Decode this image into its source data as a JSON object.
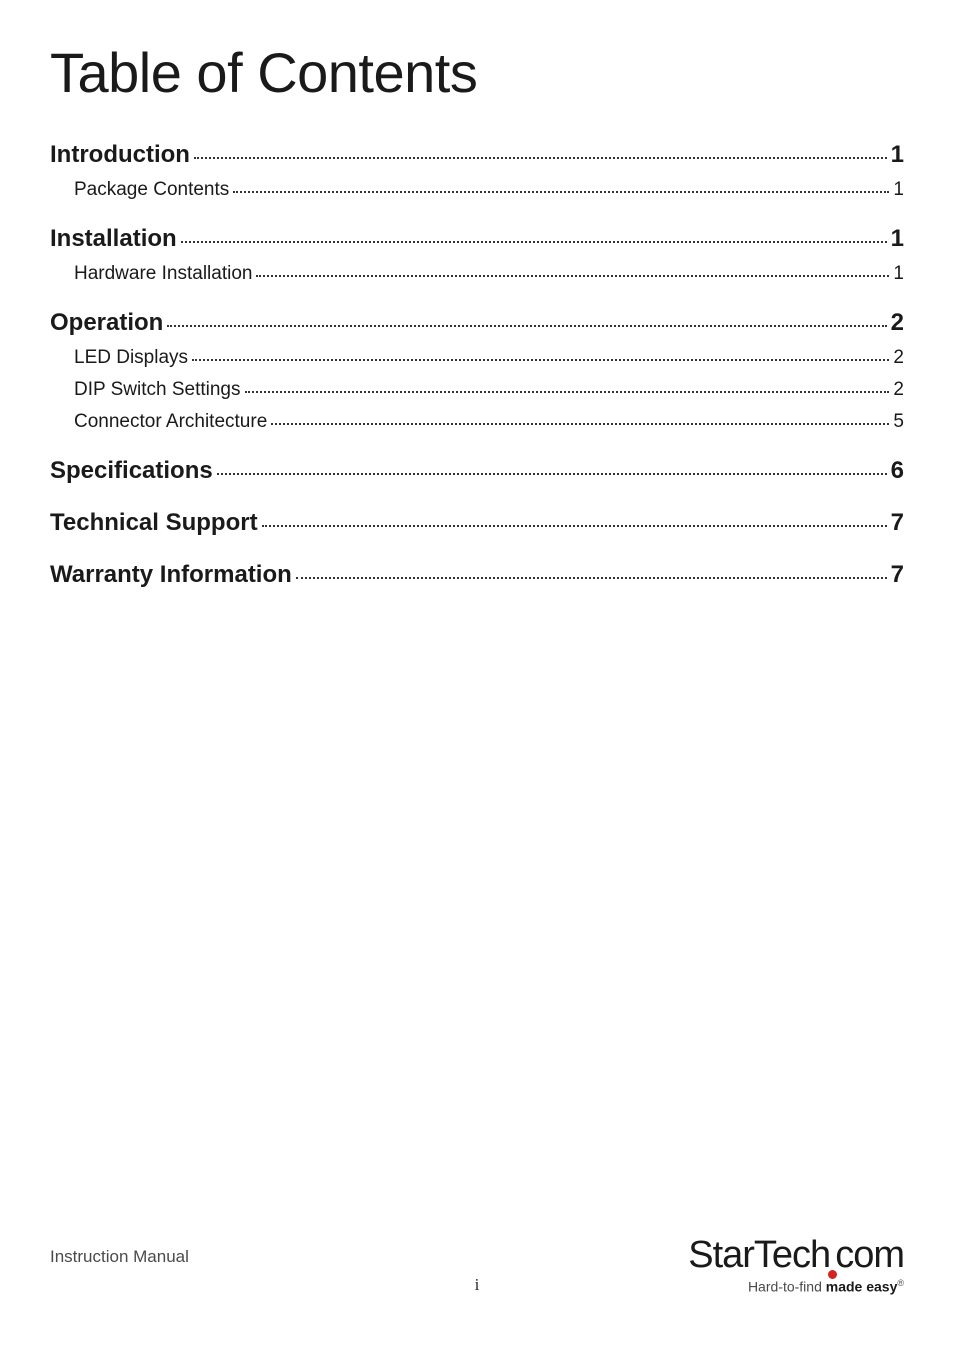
{
  "document": {
    "title": "Table of Contents",
    "footer_label": "Instruction Manual",
    "page_number": "i",
    "logo_text_1": "StarTech",
    "logo_text_2": "com",
    "tagline_prefix": "Hard-to-find ",
    "tagline_bold": "made easy",
    "tagline_suffix": "®"
  },
  "toc": {
    "sections": [
      {
        "heading": {
          "label": "Introduction ",
          "page": "1"
        },
        "items": [
          {
            "label": "Package Contents",
            "page": " 1"
          }
        ]
      },
      {
        "heading": {
          "label": "Installation",
          "page": "1"
        },
        "items": [
          {
            "label": "Hardware Installation",
            "page": " 1"
          }
        ]
      },
      {
        "heading": {
          "label": "Operation",
          "page": "2"
        },
        "items": [
          {
            "label": "LED Displays",
            "page": " 2"
          },
          {
            "label": "DIP Switch Settings",
            "page": " 2"
          },
          {
            "label": "Connector Architecture ",
            "page": " 5"
          }
        ]
      },
      {
        "heading": {
          "label": "Specifications",
          "page": "6"
        },
        "items": []
      },
      {
        "heading": {
          "label": "Technical Support",
          "page": "7"
        },
        "items": []
      },
      {
        "heading": {
          "label": "Warranty Information",
          "page": "7"
        },
        "items": []
      }
    ]
  },
  "style": {
    "title_fontsize": 56,
    "heading_fontsize": 24,
    "subheading_fontsize": 19,
    "text_color": "#1a1a1a",
    "background_color": "#ffffff",
    "dot_color": "#333333",
    "logo_accent_color": "#d32323",
    "footer_fontsize": 17,
    "tagline_fontsize": 14
  }
}
